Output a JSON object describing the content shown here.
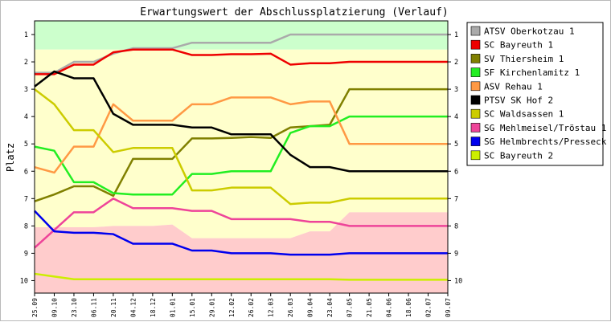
{
  "chart_data": {
    "type": "line",
    "title": "Erwartungswert der Abschlussplatzierung (Verlauf)",
    "ylabel": "Platz",
    "xlabel": "",
    "ylim": [
      1,
      10
    ],
    "y_inverted": true,
    "yticks": [
      "1",
      "2",
      "3",
      "4",
      "5",
      "6",
      "7",
      "8",
      "9",
      "10"
    ],
    "categories": [
      "25.09",
      "09.10",
      "23.10",
      "06.11",
      "20.11",
      "04.12",
      "18.12",
      "01.01",
      "15.01",
      "29.01",
      "12.02",
      "26.02",
      "12.03",
      "26.03",
      "09.04",
      "23.04",
      "07.05",
      "21.05",
      "04.06",
      "18.06",
      "02.07",
      "09.07"
    ],
    "legend_position": "right",
    "grid": false,
    "zones": [
      {
        "color": "#ccffcc",
        "top": [
          0.5,
          0.5,
          0.5,
          0.5,
          0.5,
          0.5,
          0.5,
          0.5,
          0.5,
          0.5,
          0.5,
          0.5,
          0.5,
          0.5,
          0.5,
          0.5,
          0.5,
          0.5,
          0.5,
          0.5,
          0.5,
          0.5
        ],
        "bottom": [
          1.55,
          1.55,
          1.55,
          1.55,
          1.55,
          1.55,
          1.55,
          1.55,
          1.55,
          1.55,
          1.55,
          1.55,
          1.55,
          1.55,
          1.55,
          1.55,
          1.55,
          1.55,
          1.55,
          1.55,
          1.55,
          1.55
        ]
      },
      {
        "color": "#ffffcc",
        "top": [
          1.55,
          1.55,
          1.55,
          1.55,
          1.55,
          1.55,
          1.55,
          1.55,
          1.55,
          1.55,
          1.55,
          1.55,
          1.55,
          1.55,
          1.55,
          1.55,
          1.55,
          1.55,
          1.55,
          1.55,
          1.55,
          1.55
        ],
        "bottom": [
          8.05,
          8.05,
          8.05,
          8.05,
          8.0,
          8.0,
          8.0,
          7.95,
          8.45,
          8.45,
          8.45,
          8.45,
          8.45,
          8.45,
          8.2,
          8.2,
          7.5,
          7.5,
          7.5,
          7.5,
          7.5,
          7.5
        ]
      },
      {
        "color": "#ffcccc",
        "top": [
          8.05,
          8.05,
          8.05,
          8.05,
          8.0,
          8.0,
          8.0,
          7.95,
          8.45,
          8.45,
          8.45,
          8.45,
          8.45,
          8.45,
          8.2,
          8.2,
          7.5,
          7.5,
          7.5,
          7.5,
          7.5,
          7.5
        ],
        "bottom": [
          10.5,
          10.5,
          10.5,
          10.5,
          10.5,
          10.5,
          10.5,
          10.5,
          10.5,
          10.5,
          10.5,
          10.5,
          10.5,
          10.5,
          10.5,
          10.5,
          10.5,
          10.5,
          10.5,
          10.5,
          10.5,
          10.5
        ]
      }
    ],
    "series": [
      {
        "name": "ATSV Oberkotzau 1",
        "color": "#aaaaaa",
        "values": [
          2.4,
          2.4,
          2.0,
          2.0,
          1.7,
          1.5,
          1.5,
          1.5,
          1.3,
          1.3,
          1.3,
          1.3,
          1.3,
          1.0,
          1.0,
          1.0,
          1.0,
          1.0,
          1.0,
          1.0,
          1.0,
          1.0
        ]
      },
      {
        "name": "SC Bayreuth 1",
        "color": "#ee0000",
        "values": [
          2.45,
          2.45,
          2.1,
          2.1,
          1.65,
          1.55,
          1.55,
          1.55,
          1.75,
          1.75,
          1.72,
          1.72,
          1.7,
          2.1,
          2.05,
          2.05,
          2.0,
          2.0,
          2.0,
          2.0,
          2.0,
          2.0
        ]
      },
      {
        "name": "SV Thiersheim 1",
        "color": "#808000",
        "values": [
          7.1,
          6.85,
          6.55,
          6.55,
          6.9,
          5.55,
          5.55,
          5.55,
          4.8,
          4.8,
          4.78,
          4.75,
          4.78,
          4.4,
          4.35,
          4.3,
          3.0,
          3.0,
          3.0,
          3.0,
          3.0,
          3.0
        ]
      },
      {
        "name": "SF Kirchenlamitz 1",
        "color": "#22ee22",
        "values": [
          5.1,
          5.25,
          6.4,
          6.4,
          6.8,
          6.85,
          6.85,
          6.85,
          6.1,
          6.1,
          6.0,
          6.0,
          6.0,
          4.6,
          4.35,
          4.35,
          4.0,
          4.0,
          4.0,
          4.0,
          4.0,
          4.0
        ]
      },
      {
        "name": "ASV Rehau 1",
        "color": "#ff9944",
        "values": [
          5.85,
          6.05,
          5.1,
          5.1,
          3.55,
          4.15,
          4.15,
          4.15,
          3.55,
          3.55,
          3.3,
          3.3,
          3.3,
          3.55,
          3.45,
          3.45,
          5.0,
          5.0,
          5.0,
          5.0,
          5.0,
          5.0
        ]
      },
      {
        "name": "PTSV SK Hof 2",
        "color": "#000000",
        "values": [
          2.9,
          2.35,
          2.6,
          2.6,
          3.9,
          4.3,
          4.3,
          4.3,
          4.4,
          4.4,
          4.65,
          4.65,
          4.65,
          5.4,
          5.85,
          5.85,
          6.0,
          6.0,
          6.0,
          6.0,
          6.0,
          6.0
        ]
      },
      {
        "name": "SC Waldsassen 1",
        "color": "#cccc00",
        "values": [
          3.0,
          3.55,
          4.5,
          4.5,
          5.3,
          5.15,
          5.15,
          5.15,
          6.7,
          6.7,
          6.6,
          6.6,
          6.6,
          7.2,
          7.15,
          7.15,
          7.0,
          7.0,
          7.0,
          7.0,
          7.0,
          7.0
        ]
      },
      {
        "name": "SG Mehlmeisel/Tröstau 1",
        "color": "#ee4499",
        "values": [
          8.8,
          8.15,
          7.5,
          7.5,
          7.0,
          7.35,
          7.35,
          7.35,
          7.45,
          7.45,
          7.75,
          7.75,
          7.75,
          7.75,
          7.85,
          7.85,
          8.0,
          8.0,
          8.0,
          8.0,
          8.0,
          8.0
        ]
      },
      {
        "name": "SG Helmbrechts/Presseck 1",
        "color": "#0000ee",
        "values": [
          7.45,
          8.2,
          8.25,
          8.25,
          8.3,
          8.65,
          8.65,
          8.65,
          8.9,
          8.9,
          9.0,
          9.0,
          9.0,
          9.05,
          9.05,
          9.05,
          9.0,
          9.0,
          9.0,
          9.0,
          9.0,
          9.0
        ]
      },
      {
        "name": "SC Bayreuth 2",
        "color": "#ccee00",
        "values": [
          9.75,
          9.85,
          9.95,
          9.95,
          9.95,
          9.95,
          9.95,
          9.95,
          9.95,
          9.95,
          9.95,
          9.95,
          9.95,
          9.95,
          9.95,
          9.95,
          9.97,
          9.97,
          9.97,
          9.97,
          9.97,
          9.97
        ]
      }
    ]
  }
}
